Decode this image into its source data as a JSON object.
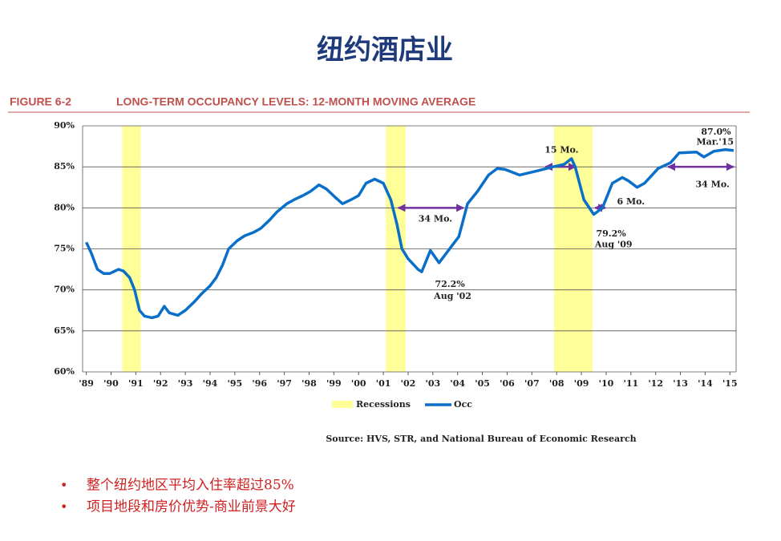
{
  "slide_title": "纽约酒店业",
  "chart_data": {
    "type": "line",
    "figure_label": "FIGURE 6-2",
    "title": "LONG-TERM OCCUPANCY LEVELS: 12-MONTH MOVING AVERAGE",
    "source": "Source: HVS, STR, and National Bureau of Economic Research",
    "xlim": [
      1988.85,
      2015.25
    ],
    "xticks": [
      {
        "value": 1989,
        "label": "'89"
      },
      {
        "value": 1990,
        "label": "'90"
      },
      {
        "value": 1991,
        "label": "'91"
      },
      {
        "value": 1992,
        "label": "'92"
      },
      {
        "value": 1993,
        "label": "'93"
      },
      {
        "value": 1994,
        "label": "'94"
      },
      {
        "value": 1995,
        "label": "'95"
      },
      {
        "value": 1996,
        "label": "'96"
      },
      {
        "value": 1997,
        "label": "'97"
      },
      {
        "value": 1998,
        "label": "'98"
      },
      {
        "value": 1999,
        "label": "'99"
      },
      {
        "value": 2000,
        "label": "'00"
      },
      {
        "value": 2001,
        "label": "'01"
      },
      {
        "value": 2002,
        "label": "'02"
      },
      {
        "value": 2003,
        "label": "'03"
      },
      {
        "value": 2004,
        "label": "'04"
      },
      {
        "value": 2005,
        "label": "'05"
      },
      {
        "value": 2006,
        "label": "'06"
      },
      {
        "value": 2007,
        "label": "'07"
      },
      {
        "value": 2008,
        "label": "'08"
      },
      {
        "value": 2009,
        "label": "'09"
      },
      {
        "value": 2010,
        "label": "'10"
      },
      {
        "value": 2011,
        "label": "'11"
      },
      {
        "value": 2012,
        "label": "'12"
      },
      {
        "value": 2013,
        "label": "'13"
      },
      {
        "value": 2014,
        "label": "'14"
      },
      {
        "value": 2015,
        "label": "'15"
      }
    ],
    "ylim": [
      60,
      90
    ],
    "yticks": [
      {
        "value": 60,
        "label": "60%"
      },
      {
        "value": 65,
        "label": "65%"
      },
      {
        "value": 70,
        "label": "70%"
      },
      {
        "value": 75,
        "label": "75%"
      },
      {
        "value": 80,
        "label": "80%"
      },
      {
        "value": 85,
        "label": "85%"
      },
      {
        "value": 90,
        "label": "90%"
      }
    ],
    "grid": true,
    "recessions": {
      "name": "Recessions",
      "color": "#ffff99",
      "ranges": [
        [
          1990.45,
          1991.2
        ],
        [
          2001.1,
          2001.9
        ],
        [
          2007.9,
          2009.45
        ]
      ]
    },
    "x": [
      1989.0,
      1989.2,
      1989.45,
      1989.7,
      1989.95,
      1990.3,
      1990.5,
      1990.75,
      1990.95,
      1991.15,
      1991.35,
      1991.65,
      1991.9,
      1992.15,
      1992.35,
      1992.7,
      1993.0,
      1993.35,
      1993.65,
      1994.0,
      1994.25,
      1994.5,
      1994.75,
      1995.1,
      1995.4,
      1995.75,
      1996.05,
      1996.4,
      1996.7,
      1997.1,
      1997.4,
      1997.75,
      1998.05,
      1998.4,
      1998.7,
      1999.05,
      1999.35,
      1999.7,
      2000.0,
      2000.3,
      2000.65,
      2001.0,
      2001.3,
      2001.55,
      2001.75,
      2002.0,
      2002.4,
      2002.55,
      2002.9,
      2003.25,
      2004.05,
      2004.4,
      2004.8,
      2005.25,
      2005.6,
      2005.9,
      2006.5,
      2007.2,
      2007.85,
      2008.3,
      2008.6,
      2008.75,
      2009.1,
      2009.5,
      2009.85,
      2010.25,
      2010.65,
      2010.9,
      2011.25,
      2011.55,
      2012.1,
      2012.6,
      2012.95,
      2013.65,
      2013.95,
      2014.35,
      2014.8,
      2015.15
    ],
    "series": [
      {
        "name": "Occ",
        "color": "#0a6fc9",
        "values": [
          75.8,
          74.5,
          72.5,
          72,
          72,
          72.5,
          72.3,
          71.5,
          70,
          67.5,
          66.8,
          66.6,
          66.8,
          68,
          67.2,
          66.9,
          67.5,
          68.5,
          69.5,
          70.5,
          71.5,
          73,
          75,
          76,
          76.6,
          77,
          77.5,
          78.5,
          79.5,
          80.5,
          81,
          81.5,
          82,
          82.8,
          82.3,
          81.3,
          80.5,
          81,
          81.5,
          83,
          83.5,
          83,
          81,
          78,
          75,
          73.8,
          72.5,
          72.2,
          74.8,
          73.3,
          76.5,
          80.5,
          82,
          84,
          84.8,
          84.7,
          84,
          84.5,
          85,
          85.3,
          86,
          85,
          81,
          79.2,
          80,
          83,
          83.7,
          83.3,
          82.5,
          83,
          84.8,
          85.5,
          86.7,
          86.8,
          86.2,
          86.9,
          87.1,
          87
        ]
      }
    ],
    "arrows": [
      {
        "from": 2007.54,
        "to": 2008.77,
        "y": 85
      },
      {
        "from": 2001.6,
        "to": 2004.24,
        "y": 80
      },
      {
        "from": 2009.55,
        "to": 2009.97,
        "y": 80
      },
      {
        "from": 2012.5,
        "to": 2015.15,
        "y": 85
      }
    ],
    "annotations": [
      {
        "text": "15 Mo.",
        "x": 2008.2,
        "y": 87.0
      },
      {
        "text": "34 Mo.",
        "x": 2003.1,
        "y": 78.6
      },
      {
        "text": "6 Mo.",
        "x": 2011.0,
        "y": 80.7
      },
      {
        "text": "34 Mo.",
        "x": 2014.3,
        "y": 82.8
      },
      {
        "text": "72.2%",
        "x": 2003.69,
        "y": 70.65
      },
      {
        "text": "Aug '02",
        "x": 2003.8,
        "y": 69.2
      },
      {
        "text": "79.2%",
        "x": 2010.2,
        "y": 76.8
      },
      {
        "text": "Aug '09",
        "x": 2010.3,
        "y": 75.5
      },
      {
        "text": "87.0%",
        "x": 2014.44,
        "y": 89.2
      },
      {
        "text": "Mar.'15",
        "x": 2014.4,
        "y": 88.0
      }
    ]
  },
  "bullets": [
    "整个纽约地区平均入住率超过85%",
    "项目地段和房价优势-商业前景大好"
  ]
}
